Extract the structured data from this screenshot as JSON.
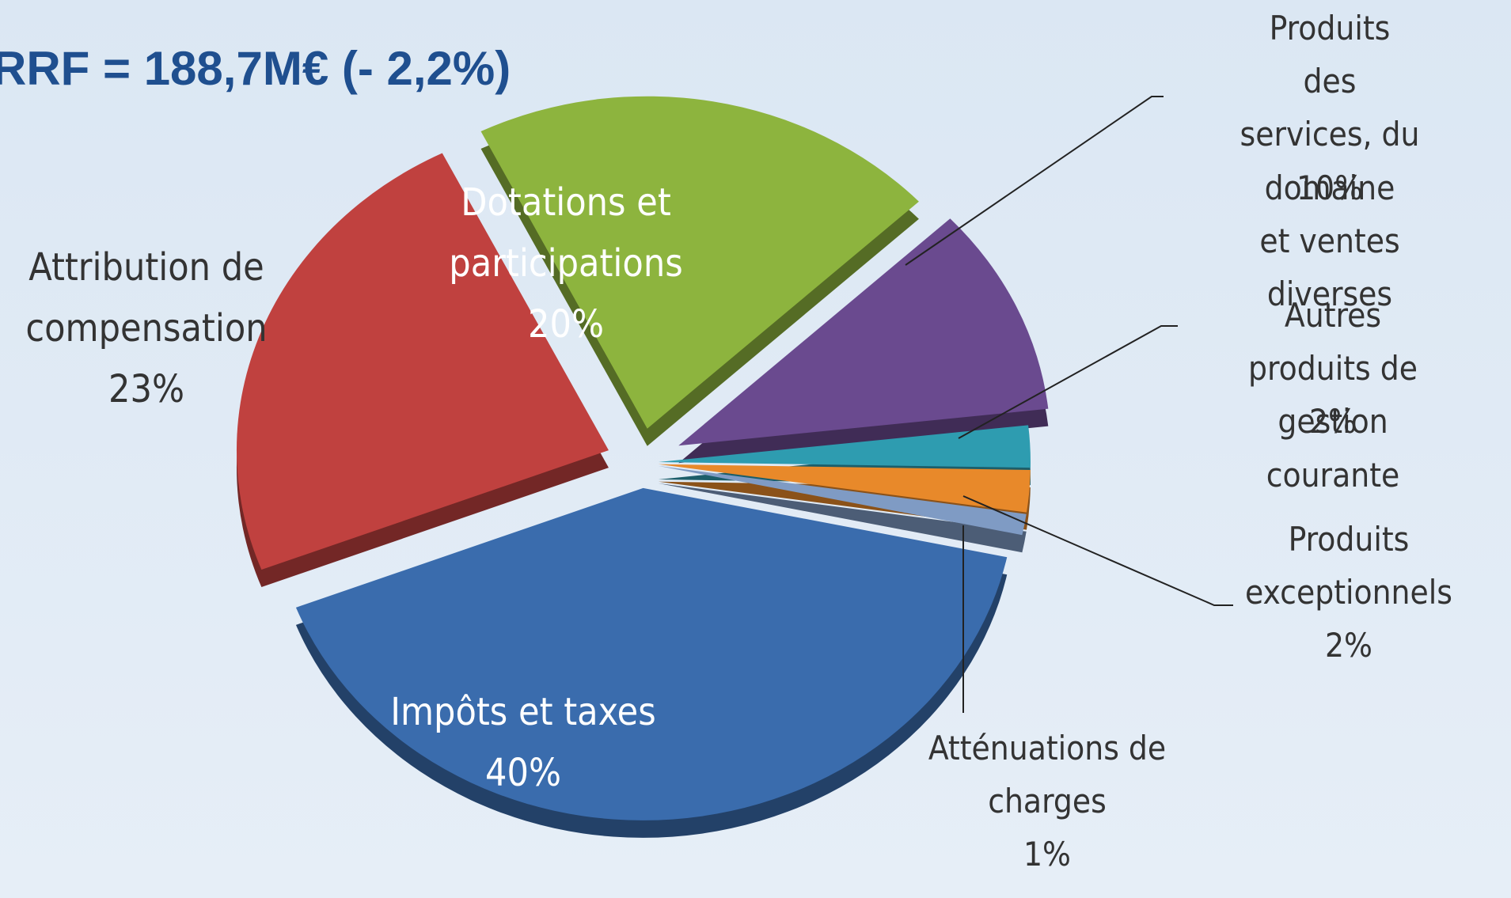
{
  "chart_data": {
    "type": "pie",
    "title": "RRF = 188,7M€ (- 2,2%)",
    "categories": [
      "Impôts et taxes",
      "Attribution de\ncompensation",
      "Dotations et\nparticipations",
      "Produits des\nservices, du domaine\net ventes diverses",
      "Autres produits de\ngestion courante",
      "Produits\nexceptionnels",
      "Atténuations de\ncharges"
    ],
    "values": [
      40,
      23,
      20,
      10,
      2,
      2,
      1
    ],
    "value_labels": [
      "40%",
      "23%",
      "20%",
      "10%",
      "2%",
      "2%",
      "1%"
    ],
    "colors": [
      "#3a6cad",
      "#c0413f",
      "#8db43e",
      "#6a4a8f",
      "#2e9cb0",
      "#e8892a",
      "#7f9bc4"
    ]
  }
}
